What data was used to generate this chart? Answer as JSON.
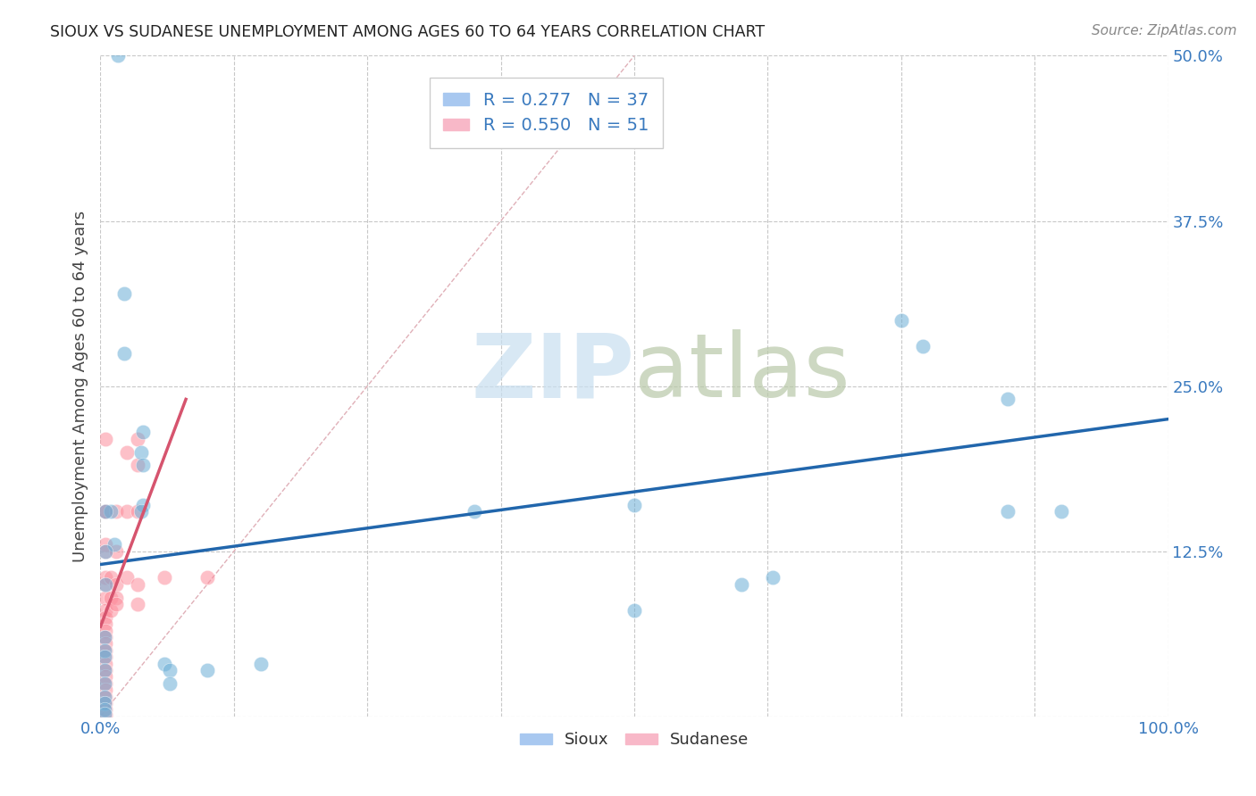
{
  "title": "SIOUX VS SUDANESE UNEMPLOYMENT AMONG AGES 60 TO 64 YEARS CORRELATION CHART",
  "source": "Source: ZipAtlas.com",
  "ylabel": "Unemployment Among Ages 60 to 64 years",
  "xlim": [
    0,
    1.0
  ],
  "ylim": [
    0,
    0.5
  ],
  "xticks": [
    0.0,
    0.125,
    0.25,
    0.375,
    0.5,
    0.625,
    0.75,
    0.875,
    1.0
  ],
  "xticklabels": [
    "0.0%",
    "",
    "",
    "",
    "",
    "",
    "",
    "",
    "100.0%"
  ],
  "yticks": [
    0.0,
    0.125,
    0.25,
    0.375,
    0.5
  ],
  "yticklabels": [
    "",
    "12.5%",
    "25.0%",
    "37.5%",
    "50.0%"
  ],
  "sioux_color": "#6baed6",
  "sudanese_color": "#fc8d9c",
  "sioux_line_color": "#2166ac",
  "sudanese_line_color": "#d6546e",
  "diagonal_color": "#cccccc",
  "background_color": "#ffffff",
  "grid_color": "#c8c8c8",
  "sioux_points": [
    [
      0.016,
      0.5
    ],
    [
      0.022,
      0.32
    ],
    [
      0.022,
      0.275
    ],
    [
      0.04,
      0.215
    ],
    [
      0.038,
      0.2
    ],
    [
      0.04,
      0.19
    ],
    [
      0.04,
      0.16
    ],
    [
      0.038,
      0.155
    ],
    [
      0.01,
      0.155
    ],
    [
      0.013,
      0.13
    ],
    [
      0.005,
      0.125
    ],
    [
      0.005,
      0.155
    ],
    [
      0.005,
      0.1
    ],
    [
      0.004,
      0.06
    ],
    [
      0.004,
      0.05
    ],
    [
      0.004,
      0.045
    ],
    [
      0.004,
      0.035
    ],
    [
      0.004,
      0.025
    ],
    [
      0.004,
      0.015
    ],
    [
      0.004,
      0.01
    ],
    [
      0.004,
      0.005
    ],
    [
      0.004,
      0.002
    ],
    [
      0.06,
      0.04
    ],
    [
      0.065,
      0.035
    ],
    [
      0.065,
      0.025
    ],
    [
      0.1,
      0.035
    ],
    [
      0.15,
      0.04
    ],
    [
      0.35,
      0.155
    ],
    [
      0.5,
      0.16
    ],
    [
      0.5,
      0.08
    ],
    [
      0.6,
      0.1
    ],
    [
      0.63,
      0.105
    ],
    [
      0.75,
      0.3
    ],
    [
      0.77,
      0.28
    ],
    [
      0.85,
      0.24
    ],
    [
      0.85,
      0.155
    ],
    [
      0.9,
      0.155
    ]
  ],
  "sudanese_points": [
    [
      0.005,
      0.21
    ],
    [
      0.005,
      0.155
    ],
    [
      0.005,
      0.155
    ],
    [
      0.005,
      0.13
    ],
    [
      0.005,
      0.125
    ],
    [
      0.005,
      0.105
    ],
    [
      0.005,
      0.1
    ],
    [
      0.005,
      0.09
    ],
    [
      0.005,
      0.08
    ],
    [
      0.005,
      0.075
    ],
    [
      0.005,
      0.07
    ],
    [
      0.005,
      0.065
    ],
    [
      0.005,
      0.06
    ],
    [
      0.005,
      0.055
    ],
    [
      0.005,
      0.05
    ],
    [
      0.005,
      0.045
    ],
    [
      0.005,
      0.04
    ],
    [
      0.005,
      0.035
    ],
    [
      0.005,
      0.03
    ],
    [
      0.005,
      0.025
    ],
    [
      0.005,
      0.02
    ],
    [
      0.005,
      0.015
    ],
    [
      0.005,
      0.01
    ],
    [
      0.005,
      0.005
    ],
    [
      0.005,
      0.001
    ],
    [
      0.01,
      0.105
    ],
    [
      0.01,
      0.09
    ],
    [
      0.01,
      0.08
    ],
    [
      0.015,
      0.155
    ],
    [
      0.015,
      0.125
    ],
    [
      0.015,
      0.1
    ],
    [
      0.015,
      0.09
    ],
    [
      0.015,
      0.085
    ],
    [
      0.025,
      0.2
    ],
    [
      0.025,
      0.155
    ],
    [
      0.025,
      0.105
    ],
    [
      0.035,
      0.21
    ],
    [
      0.035,
      0.19
    ],
    [
      0.035,
      0.155
    ],
    [
      0.035,
      0.1
    ],
    [
      0.035,
      0.085
    ],
    [
      0.06,
      0.105
    ],
    [
      0.1,
      0.105
    ]
  ],
  "sioux_line_x": [
    0.0,
    1.0
  ],
  "sioux_line_y": [
    0.115,
    0.225
  ],
  "sudanese_line_x": [
    0.0,
    0.08
  ],
  "sudanese_line_y": [
    0.068,
    0.24
  ]
}
